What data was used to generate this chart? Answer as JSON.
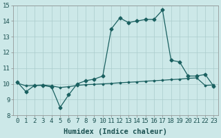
{
  "x": [
    0,
    1,
    2,
    3,
    4,
    5,
    6,
    7,
    8,
    9,
    10,
    11,
    12,
    13,
    14,
    15,
    16,
    17,
    18,
    19,
    20,
    21,
    22,
    23
  ],
  "y_main": [
    10.1,
    9.5,
    9.9,
    9.9,
    9.8,
    8.5,
    9.3,
    10.0,
    10.2,
    10.3,
    10.5,
    13.5,
    14.2,
    13.9,
    14.0,
    14.1,
    14.1,
    14.7,
    11.5,
    11.4,
    10.5,
    10.5,
    10.6,
    9.85
  ],
  "y_flat": [
    10.05,
    9.87,
    9.9,
    9.93,
    9.87,
    9.77,
    9.82,
    9.9,
    9.95,
    9.97,
    10.0,
    10.03,
    10.07,
    10.1,
    10.13,
    10.17,
    10.2,
    10.23,
    10.27,
    10.3,
    10.35,
    10.38,
    9.9,
    9.93
  ],
  "line_color": "#1a6060",
  "bg_color": "#cce8e8",
  "grid_color": "#aacccc",
  "xlabel": "Humidex (Indice chaleur)",
  "ylim": [
    8,
    15
  ],
  "xlim_min": -0.5,
  "xlim_max": 23.5,
  "yticks": [
    8,
    9,
    10,
    11,
    12,
    13,
    14,
    15
  ],
  "xticks": [
    0,
    1,
    2,
    3,
    4,
    5,
    6,
    7,
    8,
    9,
    10,
    11,
    12,
    13,
    14,
    15,
    16,
    17,
    18,
    19,
    20,
    21,
    22,
    23
  ],
  "tick_fontsize": 6.5,
  "label_fontsize": 7.5
}
